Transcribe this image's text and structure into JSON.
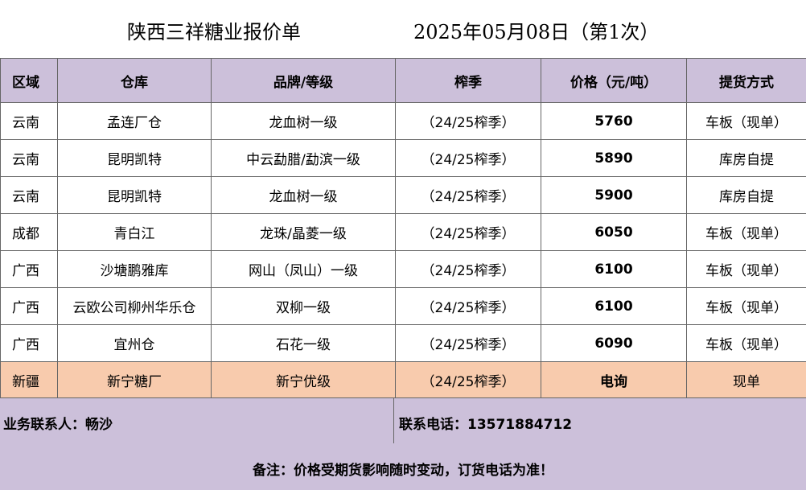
{
  "header": {
    "title": "陕西三祥糖业报价单",
    "date": "2025年05月08日（第1次）"
  },
  "table": {
    "columns": [
      "区域",
      "仓库",
      "品牌/等级",
      "榨季",
      "价格（元/吨）",
      "提货方式"
    ],
    "rows": [
      [
        "云南",
        "孟连厂仓",
        "龙血树一级",
        "（24/25榨季）",
        "5760",
        "车板（现单）"
      ],
      [
        "云南",
        "昆明凯特",
        "中云勐腊/勐滨一级",
        "（24/25榨季）",
        "5890",
        "库房自提"
      ],
      [
        "云南",
        "昆明凯特",
        "龙血树一级",
        "（24/25榨季）",
        "5900",
        "库房自提"
      ],
      [
        "成都",
        "青白江",
        "龙珠/晶菱一级",
        "（24/25榨季）",
        "6050",
        "车板（现单）"
      ],
      [
        "广西",
        "沙塘鹏雅库",
        "网山（凤山）一级",
        "（24/25榨季）",
        "6100",
        "车板（现单）"
      ],
      [
        "广西",
        "云欧公司柳州华乐仓",
        "双柳一级",
        "（24/25榨季）",
        "6100",
        "车板（现单）"
      ],
      [
        "广西",
        "宜州仓",
        "石花一级",
        "（24/25榨季）",
        "6090",
        "车板（现单）"
      ]
    ],
    "special_row": [
      "新疆",
      "新宁糖厂",
      "新宁优级",
      "（24/25榨季）",
      "电询",
      "现单"
    ]
  },
  "contact": {
    "person": "业务联系人：畅沙",
    "phone": "联系电话：13571884712"
  },
  "note": "备注：价格受期货影响随时变动，订货电话为准！",
  "colors": {
    "header_bg": "#ccc0da",
    "special_row_bg": "#f8cbad",
    "footer_bg": "#ccc0da"
  }
}
